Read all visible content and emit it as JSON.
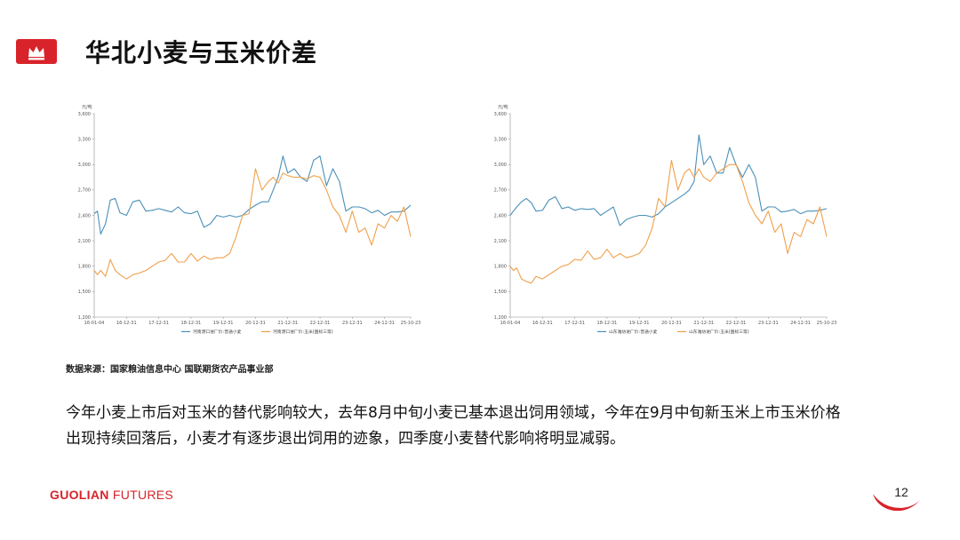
{
  "header": {
    "title": "华北小麦与玉米价差"
  },
  "source_note": "数据来源：国家粮油信息中心  国联期货农产品事业部",
  "body_text": "今年小麦上市后对玉米的替代影响较大，去年8月中旬小麦已基本退出饲用领域，今年在9月中旬新玉米上市玉米价格出现持续回落后，小麦才有逐步退出饲用的迹象，四季度小麦替代影响将明显减弱。",
  "footer": {
    "brand_bold": "GUOLIAN",
    "brand_rest": " FUTURES",
    "page_number": "12"
  },
  "colors": {
    "accent": "#d8232a",
    "series_blue": "#4a90b8",
    "series_orange": "#f0a04b",
    "axis": "#888888"
  },
  "chart_data": [
    {
      "type": "line",
      "unit": "元/吨",
      "ylim": [
        1200,
        3600
      ],
      "yticks": [
        1200,
        1500,
        1800,
        2100,
        2400,
        2700,
        3000,
        3300,
        3600
      ],
      "ytick_labels": [
        "1,200",
        "1,500",
        "1,800",
        "2,100",
        "2,400",
        "2,700",
        "3,000",
        "3,300",
        "3,600"
      ],
      "xtick_labels": [
        "16-01-04",
        "16-12-31",
        "17-12-31",
        "18-12-31",
        "19-12-31",
        "20-12-31",
        "21-12-31",
        "22-12-31",
        "23-12-31",
        "24-12-31",
        "25-10-23"
      ],
      "xtick_years": [
        2016.0,
        2017.0,
        2018.0,
        2019.0,
        2020.0,
        2021.0,
        2022.0,
        2023.0,
        2024.0,
        2025.0,
        2025.81
      ],
      "x_years": [
        2016.0,
        2016.1,
        2016.2,
        2016.35,
        2016.5,
        2016.65,
        2016.8,
        2017.0,
        2017.2,
        2017.4,
        2017.6,
        2017.8,
        2018.0,
        2018.2,
        2018.4,
        2018.6,
        2018.8,
        2019.0,
        2019.2,
        2019.4,
        2019.6,
        2019.8,
        2020.0,
        2020.2,
        2020.4,
        2020.6,
        2020.8,
        2021.0,
        2021.2,
        2021.4,
        2021.55,
        2021.7,
        2021.85,
        2022.0,
        2022.2,
        2022.4,
        2022.6,
        2022.8,
        2023.0,
        2023.2,
        2023.4,
        2023.6,
        2023.8,
        2024.0,
        2024.2,
        2024.4,
        2024.6,
        2024.8,
        2025.0,
        2025.2,
        2025.4,
        2025.6,
        2025.81
      ],
      "series": [
        {
          "name": "河南港口进厂价:普通小麦",
          "color": "#4a90b8",
          "values": [
            2420,
            2450,
            2180,
            2300,
            2580,
            2600,
            2430,
            2400,
            2560,
            2580,
            2450,
            2460,
            2480,
            2460,
            2440,
            2500,
            2430,
            2420,
            2450,
            2260,
            2300,
            2400,
            2380,
            2400,
            2380,
            2400,
            2470,
            2520,
            2560,
            2560,
            2700,
            2850,
            3100,
            2900,
            2950,
            2850,
            2800,
            3050,
            3100,
            2750,
            2950,
            2800,
            2450,
            2500,
            2500,
            2480,
            2430,
            2460,
            2400,
            2440,
            2440,
            2450,
            2520
          ]
        },
        {
          "name": "河南港口进厂价:玉米(国标三等)",
          "color": "#f0a04b",
          "values": [
            1750,
            1700,
            1750,
            1680,
            1880,
            1750,
            1700,
            1650,
            1700,
            1720,
            1750,
            1800,
            1850,
            1870,
            1950,
            1850,
            1850,
            1950,
            1860,
            1920,
            1880,
            1900,
            1900,
            1950,
            2150,
            2400,
            2420,
            2950,
            2700,
            2800,
            2850,
            2780,
            2900,
            2870,
            2850,
            2850,
            2830,
            2870,
            2850,
            2700,
            2500,
            2400,
            2200,
            2450,
            2200,
            2250,
            2050,
            2300,
            2250,
            2400,
            2330,
            2500,
            2150
          ]
        }
      ]
    },
    {
      "type": "line",
      "unit": "元/吨",
      "ylim": [
        1200,
        3600
      ],
      "yticks": [
        1200,
        1500,
        1800,
        2100,
        2400,
        2700,
        3000,
        3300,
        3600
      ],
      "ytick_labels": [
        "1,200",
        "1,500",
        "1,800",
        "2,100",
        "2,400",
        "2,700",
        "3,000",
        "3,300",
        "3,600"
      ],
      "xtick_labels": [
        "16-01-04",
        "16-12-31",
        "17-12-31",
        "18-12-31",
        "19-12-31",
        "20-12-31",
        "21-12-31",
        "22-12-31",
        "23-12-31",
        "24-12-31",
        "25-10-23"
      ],
      "xtick_years": [
        2016.0,
        2017.0,
        2018.0,
        2019.0,
        2020.0,
        2021.0,
        2022.0,
        2023.0,
        2024.0,
        2025.0,
        2025.81
      ],
      "x_years": [
        2016.0,
        2016.1,
        2016.2,
        2016.35,
        2016.5,
        2016.65,
        2016.8,
        2017.0,
        2017.2,
        2017.4,
        2017.6,
        2017.8,
        2018.0,
        2018.2,
        2018.4,
        2018.6,
        2018.8,
        2019.0,
        2019.2,
        2019.4,
        2019.6,
        2019.8,
        2020.0,
        2020.2,
        2020.4,
        2020.6,
        2020.8,
        2021.0,
        2021.2,
        2021.4,
        2021.55,
        2021.7,
        2021.85,
        2022.0,
        2022.2,
        2022.4,
        2022.6,
        2022.8,
        2023.0,
        2023.2,
        2023.4,
        2023.6,
        2023.8,
        2024.0,
        2024.2,
        2024.4,
        2024.6,
        2024.8,
        2025.0,
        2025.2,
        2025.4,
        2025.6,
        2025.81
      ],
      "series": [
        {
          "name": "山东潍坊进厂价:普通小麦",
          "color": "#4a90b8",
          "values": [
            2400,
            2450,
            2500,
            2560,
            2600,
            2550,
            2450,
            2460,
            2580,
            2620,
            2480,
            2500,
            2460,
            2480,
            2470,
            2480,
            2400,
            2450,
            2500,
            2280,
            2350,
            2380,
            2400,
            2400,
            2380,
            2420,
            2500,
            2550,
            2600,
            2650,
            2700,
            2800,
            3350,
            3000,
            3100,
            2900,
            2900,
            3200,
            3000,
            2850,
            3000,
            2850,
            2450,
            2500,
            2500,
            2440,
            2450,
            2470,
            2420,
            2450,
            2450,
            2460,
            2480
          ]
        },
        {
          "name": "山东潍坊进厂价:玉米(国标三等)",
          "color": "#f0a04b",
          "values": [
            1800,
            1750,
            1780,
            1650,
            1620,
            1600,
            1680,
            1650,
            1700,
            1750,
            1800,
            1820,
            1880,
            1870,
            1980,
            1880,
            1900,
            2000,
            1900,
            1950,
            1900,
            1920,
            1950,
            2050,
            2250,
            2600,
            2500,
            3050,
            2700,
            2900,
            2950,
            2850,
            2950,
            2850,
            2800,
            2900,
            2950,
            3000,
            3000,
            2800,
            2550,
            2400,
            2300,
            2450,
            2200,
            2300,
            1950,
            2200,
            2150,
            2350,
            2300,
            2500,
            2150
          ]
        }
      ]
    }
  ]
}
